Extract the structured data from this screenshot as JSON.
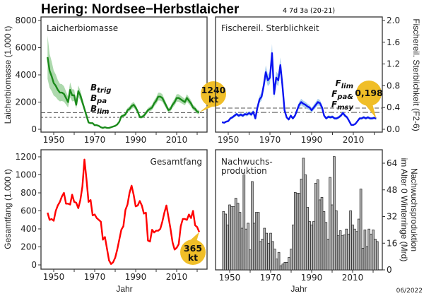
{
  "title": "Hering: Nordsee−Herbstlaicher",
  "subtitle": "4 7d 3a (20-21)",
  "date": "06/2022",
  "colors": {
    "ssb": "#1a8a1a",
    "ssb_band": "#9fd29f",
    "f": "#0a14f0",
    "f_band": "#9cc8ec",
    "catch": "#ff0000",
    "recruit_bar": "#b4b4b4",
    "callout": "#f0be28",
    "ref_line": "#555555"
  },
  "chart_data": [
    {
      "type": "line",
      "title": "Laicherbiomasse",
      "ylabel": "Laicherbiomasse (1.000 t)",
      "ylim": [
        0,
        8000
      ],
      "yticks": [
        0,
        2000,
        4000,
        6000,
        8000
      ],
      "ytick_labels": [
        "0",
        "2000",
        "4000",
        "6000",
        "8000"
      ],
      "xticks": [
        1950,
        1970,
        1990,
        2010
      ],
      "xtick_labels": [
        "1950",
        "1970",
        "1990",
        "2010"
      ],
      "x": [
        1947,
        1948,
        1949,
        1950,
        1951,
        1952,
        1953,
        1954,
        1955,
        1956,
        1957,
        1958,
        1959,
        1960,
        1961,
        1962,
        1963,
        1964,
        1965,
        1966,
        1967,
        1968,
        1969,
        1970,
        1971,
        1972,
        1973,
        1974,
        1975,
        1976,
        1977,
        1978,
        1979,
        1980,
        1981,
        1982,
        1983,
        1984,
        1985,
        1986,
        1987,
        1988,
        1989,
        1990,
        1991,
        1992,
        1993,
        1994,
        1995,
        1996,
        1997,
        1998,
        1999,
        2000,
        2001,
        2002,
        2003,
        2004,
        2005,
        2006,
        2007,
        2008,
        2009,
        2010,
        2011,
        2012,
        2013,
        2014,
        2015,
        2016,
        2017,
        2018,
        2019,
        2020,
        2021
      ],
      "values": [
        5300,
        4300,
        3900,
        3400,
        3200,
        2900,
        2700,
        2700,
        2600,
        2300,
        2000,
        2900,
        2500,
        2500,
        1800,
        2800,
        2500,
        2000,
        1500,
        1000,
        500,
        450,
        450,
        300,
        300,
        250,
        150,
        100,
        150,
        100,
        100,
        150,
        200,
        250,
        350,
        550,
        950,
        1000,
        1100,
        1400,
        1500,
        1700,
        1800,
        1600,
        1300,
        900,
        900,
        1000,
        1200,
        1400,
        1500,
        1600,
        1900,
        2100,
        2400,
        2400,
        2300,
        2000,
        1700,
        1400,
        1500,
        1800,
        2000,
        2300,
        2300,
        2200,
        2100,
        2000,
        2300,
        2100,
        1900,
        1600,
        1500,
        1300,
        1240
      ],
      "reference_lines": [
        {
          "label_main": "B",
          "label_sub": "trig",
          "value": 1229,
          "style": "dashed"
        },
        {
          "label_main": "B",
          "label_sub": "pa",
          "value": 1229,
          "style": "dashed"
        },
        {
          "label_main": "B",
          "label_sub": "lim",
          "value": 874,
          "style": "dotted"
        }
      ],
      "callout": {
        "line1": "1240",
        "line2": "kt"
      }
    },
    {
      "type": "line",
      "title": "Fischereil. Sterblichkeit",
      "ylabel": "Fischereil. Sterblichkeit (F2-6)",
      "ylim": [
        0,
        2.0
      ],
      "yticks": [
        0,
        0.4,
        0.8,
        1.2,
        1.6,
        2.0
      ],
      "ytick_labels": [
        "0.0",
        "0.4",
        "0.8",
        "1.2",
        "1.6",
        "2.0"
      ],
      "xticks": [
        1950,
        1970,
        1990,
        2010
      ],
      "xtick_labels": [
        "1950",
        "1970",
        "1990",
        "2010"
      ],
      "x": [
        1947,
        1948,
        1949,
        1950,
        1951,
        1952,
        1953,
        1954,
        1955,
        1956,
        1957,
        1958,
        1959,
        1960,
        1961,
        1962,
        1963,
        1964,
        1965,
        1966,
        1967,
        1968,
        1969,
        1970,
        1971,
        1972,
        1973,
        1974,
        1975,
        1976,
        1977,
        1978,
        1979,
        1980,
        1981,
        1982,
        1983,
        1984,
        1985,
        1986,
        1987,
        1988,
        1989,
        1990,
        1991,
        1992,
        1993,
        1994,
        1995,
        1996,
        1997,
        1998,
        1999,
        2000,
        2001,
        2002,
        2003,
        2004,
        2005,
        2006,
        2007,
        2008,
        2009,
        2010,
        2011,
        2012,
        2013,
        2014,
        2015,
        2016,
        2017,
        2018,
        2019,
        2020,
        2021
      ],
      "values": [
        0.13,
        0.12,
        0.14,
        0.15,
        0.2,
        0.22,
        0.25,
        0.28,
        0.25,
        0.27,
        0.25,
        0.28,
        0.27,
        0.3,
        0.27,
        0.32,
        0.2,
        0.4,
        0.55,
        0.6,
        0.8,
        1.05,
        0.9,
        0.95,
        1.4,
        0.65,
        0.95,
        0.9,
        1.18,
        0.8,
        0.35,
        0.22,
        0.18,
        0.25,
        0.2,
        0.25,
        0.35,
        0.45,
        0.5,
        0.47,
        0.45,
        0.42,
        0.4,
        0.35,
        0.4,
        0.45,
        0.5,
        0.48,
        0.4,
        0.25,
        0.2,
        0.23,
        0.22,
        0.23,
        0.2,
        0.2,
        0.22,
        0.25,
        0.3,
        0.25,
        0.22,
        0.15,
        0.08,
        0.08,
        0.1,
        0.15,
        0.2,
        0.2,
        0.22,
        0.2,
        0.22,
        0.2,
        0.2,
        0.21,
        0.198
      ],
      "reference_lines": [
        {
          "label_main": "F",
          "label_sub": "lim",
          "value": 0.39,
          "style": "dashed"
        },
        {
          "label_main": "F",
          "label_sub": "pa&",
          "value": 0.31,
          "style": "dashdot"
        },
        {
          "label_main": "F",
          "label_sub": "msy",
          "value": 0.31,
          "style": "dashdot"
        }
      ],
      "callout": {
        "line1": "0,198",
        "line2": ""
      }
    },
    {
      "type": "line",
      "title": "Gesamtfang",
      "xlabel": "Jahr",
      "ylabel": "Gesamtfang (1.000 t)",
      "ylim": [
        0,
        1200
      ],
      "yticks": [
        0,
        200,
        400,
        600,
        800,
        1000,
        1200
      ],
      "ytick_labels": [
        "0",
        "200",
        "400",
        "600",
        "800",
        "1000",
        "1200"
      ],
      "xticks": [
        1950,
        1970,
        1990,
        2010
      ],
      "xtick_labels": [
        "1950",
        "1970",
        "1990",
        "2010"
      ],
      "x": [
        1947,
        1948,
        1949,
        1950,
        1951,
        1952,
        1953,
        1954,
        1955,
        1956,
        1957,
        1958,
        1959,
        1960,
        1961,
        1962,
        1963,
        1964,
        1965,
        1966,
        1967,
        1968,
        1969,
        1970,
        1971,
        1972,
        1973,
        1974,
        1975,
        1976,
        1977,
        1978,
        1979,
        1980,
        1981,
        1982,
        1983,
        1984,
        1985,
        1986,
        1987,
        1988,
        1989,
        1990,
        1991,
        1992,
        1993,
        1994,
        1995,
        1996,
        1997,
        1998,
        1999,
        2000,
        2001,
        2002,
        2003,
        2004,
        2005,
        2006,
        2007,
        2008,
        2009,
        2010,
        2011,
        2012,
        2013,
        2014,
        2015,
        2016,
        2017,
        2018,
        2019,
        2020,
        2021
      ],
      "values": [
        580,
        500,
        510,
        490,
        600,
        660,
        700,
        760,
        800,
        680,
        680,
        670,
        780,
        700,
        690,
        630,
        720,
        870,
        1170,
        950,
        700,
        720,
        550,
        560,
        520,
        500,
        480,
        280,
        310,
        180,
        50,
        10,
        30,
        80,
        170,
        280,
        390,
        430,
        610,
        670,
        800,
        880,
        780,
        650,
        660,
        710,
        660,
        570,
        580,
        270,
        260,
        390,
        360,
        380,
        380,
        400,
        480,
        580,
        660,
        530,
        400,
        250,
        170,
        190,
        230,
        430,
        510,
        510,
        500,
        560,
        520,
        600,
        440,
        420,
        365
      ],
      "callout": {
        "line1": "365",
        "line2": "kt"
      }
    },
    {
      "type": "bar",
      "title_line1": "Nachwuchs-",
      "title_line2": "produktion",
      "xlabel": "Jahr",
      "ylabel_line1": "Nachwuchsproduktion",
      "ylabel_line2": "im Alter 0 Winterringe (Mrd)",
      "ylim": [
        0,
        70
      ],
      "yticks": [
        0,
        16,
        32,
        48,
        64
      ],
      "ytick_labels": [
        "0",
        "16",
        "32",
        "48",
        "64"
      ],
      "xticks": [
        1950,
        1970,
        1990,
        2010
      ],
      "xtick_labels": [
        "1950",
        "1970",
        "1990",
        "2010"
      ],
      "x": [
        1947,
        1948,
        1949,
        1950,
        1951,
        1952,
        1953,
        1954,
        1955,
        1956,
        1957,
        1958,
        1959,
        1960,
        1961,
        1962,
        1963,
        1964,
        1965,
        1966,
        1967,
        1968,
        1969,
        1970,
        1971,
        1972,
        1973,
        1974,
        1975,
        1976,
        1977,
        1978,
        1979,
        1980,
        1981,
        1982,
        1983,
        1984,
        1985,
        1986,
        1987,
        1988,
        1989,
        1990,
        1991,
        1992,
        1993,
        1994,
        1995,
        1996,
        1997,
        1998,
        1999,
        2000,
        2001,
        2002,
        2003,
        2004,
        2005,
        2006,
        2007,
        2008,
        2009,
        2010,
        2011,
        2012,
        2013,
        2014,
        2015,
        2016,
        2017,
        2018,
        2019,
        2020,
        2021,
        2022
      ],
      "values": [
        35,
        33.5,
        27,
        39,
        38,
        38,
        43,
        40,
        34.5,
        25,
        57,
        24.5,
        28,
        12,
        53,
        28,
        34.5,
        34.5,
        17,
        18.5,
        25,
        22,
        16,
        22,
        17,
        12.5,
        6.5,
        10.5,
        2.5,
        3.5,
        4.5,
        4.5,
        7.5,
        12.5,
        27,
        46.5,
        46,
        46,
        54.5,
        67,
        57,
        37.5,
        29,
        27,
        29,
        52,
        54,
        42,
        43.5,
        35,
        28.5,
        18.5,
        55.5,
        39,
        68,
        35.5,
        20.5,
        23.5,
        20.5,
        21,
        24.5,
        21.5,
        35.5,
        27,
        24.5,
        23,
        30.5,
        48.5,
        13,
        24,
        14,
        24.5,
        21.5,
        24,
        18.5,
        17
      ]
    }
  ]
}
